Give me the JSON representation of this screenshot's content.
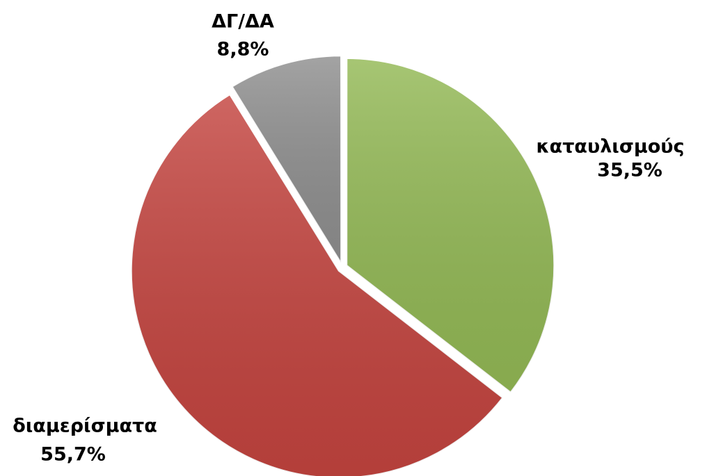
{
  "chart_data": {
    "type": "pie",
    "categories": [
      "καταυλισμούς",
      "διαμερίσματα",
      "ΔΓ/ΔΑ"
    ],
    "values": [
      35.5,
      55.7,
      8.8
    ],
    "value_labels": [
      "35,5%",
      "55,7%",
      "8,8%"
    ],
    "colors": [
      "#93b955",
      "#c4443f",
      "#8f8f8f"
    ]
  }
}
